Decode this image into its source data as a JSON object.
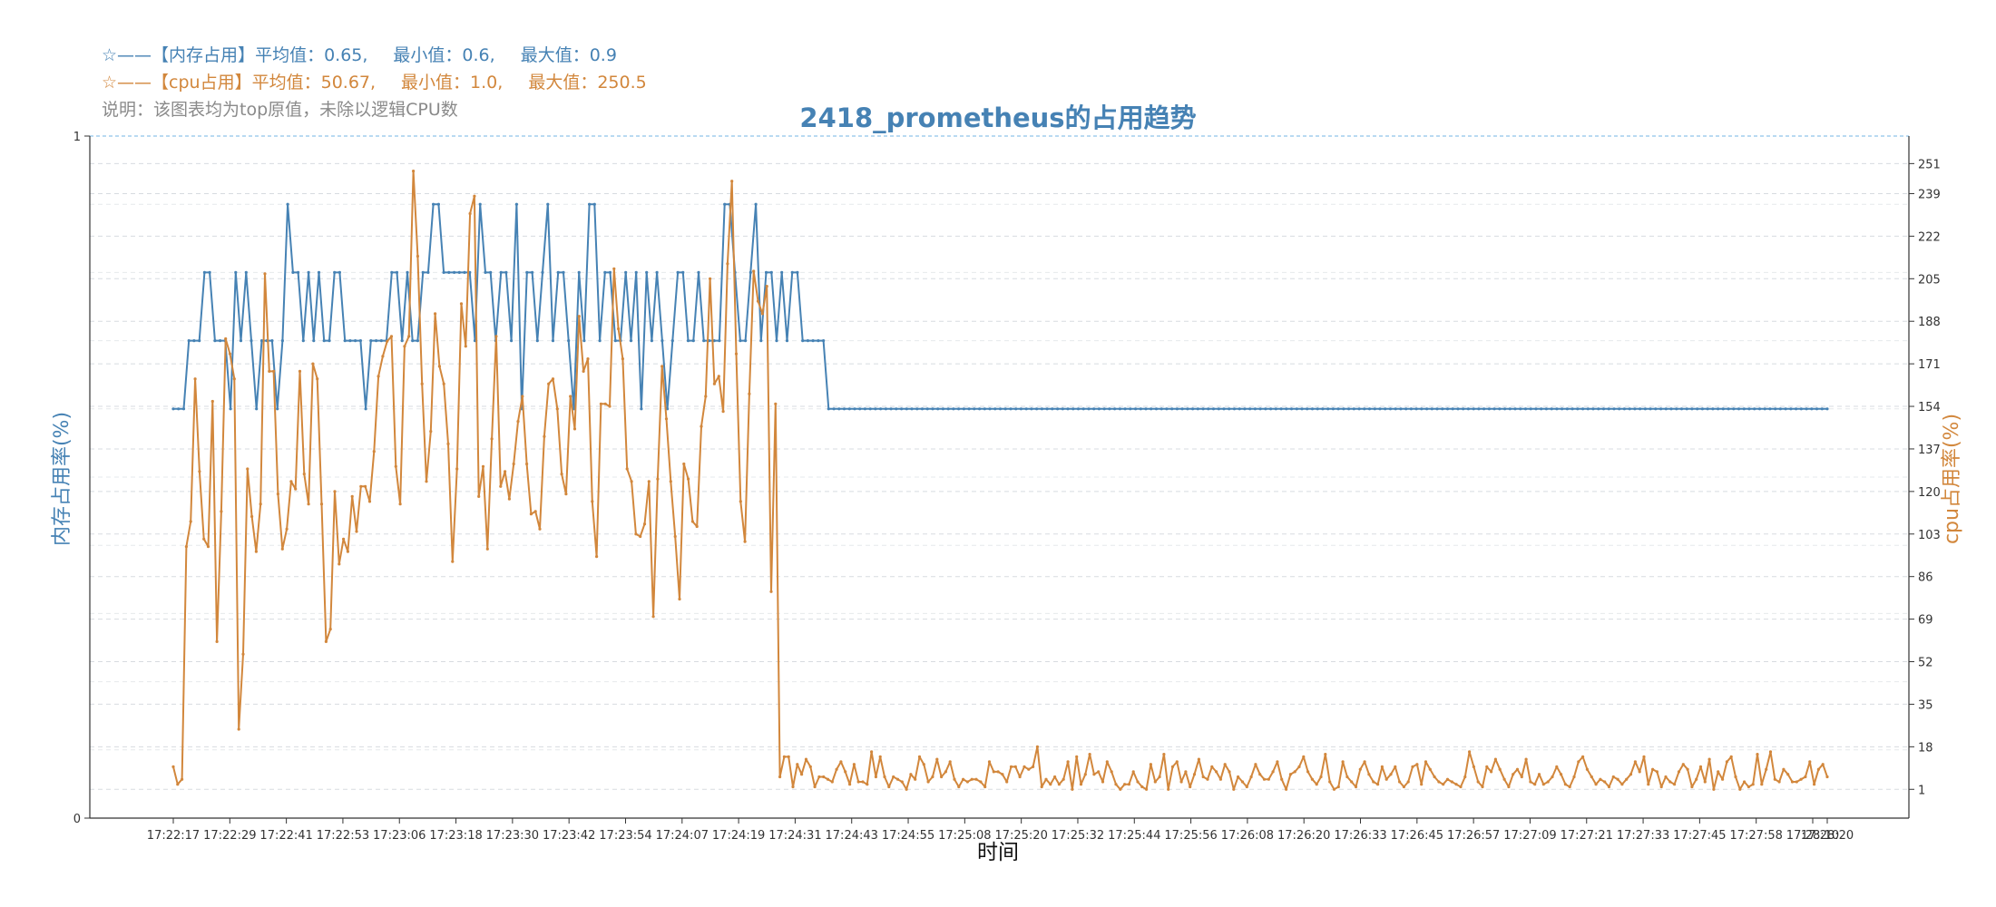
{
  "header": {
    "mem_line": {
      "marker": "☆——",
      "name": "【内存占用】",
      "avg_label": "平均值：0.65,",
      "min_label": "最小值：0.6,",
      "max_label": "最大值：0.9"
    },
    "cpu_line": {
      "marker": "☆——",
      "name": "【cpu占用】",
      "avg_label": "平均值：50.67,",
      "min_label": "最小值：1.0,",
      "max_label": "最大值：250.5"
    },
    "note": "说明：该图表均为top原值，未除以逻辑CPU数"
  },
  "chart_data": {
    "type": "line",
    "title": "2418_prometheus的占用趋势",
    "xlabel": "时间",
    "ylabel_left": "内存占用率(%)",
    "ylabel_right": "cpu占用率(%)",
    "left_ylim": [
      0,
      1
    ],
    "left_ticks": [
      "0",
      "1"
    ],
    "right_ylim": [
      -10.5,
      262
    ],
    "right_ticks": [
      "1",
      "18",
      "35",
      "52",
      "69",
      "86",
      "103",
      "120",
      "137",
      "154",
      "171",
      "188",
      "205",
      "222",
      "239",
      "251"
    ],
    "x_ticks": [
      "17:22:17",
      "17:22:29",
      "17:22:41",
      "17:22:53",
      "17:23:06",
      "17:23:18",
      "17:23:30",
      "17:23:42",
      "17:23:54",
      "17:24:07",
      "17:24:19",
      "17:24:31",
      "17:24:43",
      "17:24:55",
      "17:25:08",
      "17:25:20",
      "17:25:32",
      "17:25:44",
      "17:25:56",
      "17:26:08",
      "17:26:20",
      "17:26:33",
      "17:26:45",
      "17:26:57",
      "17:27:09",
      "17:27:21",
      "17:27:33",
      "17:27:45",
      "17:27:58",
      "17:28:10",
      "17:28:20"
    ],
    "grid": true,
    "colors": {
      "memory": "#4682b4",
      "cpu": "#d2873c",
      "title": "#4682b4"
    },
    "series": [
      {
        "name": "【内存占用】",
        "axis": "left",
        "values": [
          0.6,
          0.6,
          0.6,
          0.7,
          0.7,
          0.7,
          0.8,
          0.8,
          0.7,
          0.7,
          0.7,
          0.6,
          0.8,
          0.7,
          0.8,
          0.7,
          0.6,
          0.7,
          0.7,
          0.7,
          0.6,
          0.7,
          0.9,
          0.8,
          0.8,
          0.7,
          0.8,
          0.7,
          0.8,
          0.7,
          0.7,
          0.8,
          0.8,
          0.7,
          0.7,
          0.7,
          0.7,
          0.6,
          0.7,
          0.7,
          0.7,
          0.7,
          0.8,
          0.8,
          0.7,
          0.8,
          0.7,
          0.7,
          0.8,
          0.8,
          0.9,
          0.9,
          0.8,
          0.8,
          0.8,
          0.8,
          0.8,
          0.8,
          0.7,
          0.9,
          0.8,
          0.8,
          0.7,
          0.8,
          0.8,
          0.7,
          0.9,
          0.6,
          0.8,
          0.8,
          0.7,
          0.8,
          0.9,
          0.7,
          0.8,
          0.8,
          0.7,
          0.6,
          0.8,
          0.7,
          0.9,
          0.9,
          0.7,
          0.8,
          0.8,
          0.7,
          0.7,
          0.8,
          0.7,
          0.8,
          0.6,
          0.8,
          0.7,
          0.8,
          0.7,
          0.6,
          0.7,
          0.8,
          0.8,
          0.7,
          0.7,
          0.8,
          0.7,
          0.7,
          0.7,
          0.7,
          0.9,
          0.9,
          0.8,
          0.7,
          0.7,
          0.8,
          0.9,
          0.7,
          0.8,
          0.8,
          0.7,
          0.8,
          0.7,
          0.8,
          0.8,
          0.7,
          0.7,
          0.7,
          0.7,
          0.7,
          0.6,
          0.6,
          0.6,
          0.6,
          0.6,
          0.6,
          0.6,
          0.6,
          0.6,
          0.6,
          0.6,
          0.6,
          0.6,
          0.6,
          0.6,
          0.6,
          0.6,
          0.6,
          0.6,
          0.6,
          0.6,
          0.6,
          0.6,
          0.6,
          0.6,
          0.6,
          0.6,
          0.6,
          0.6,
          0.6,
          0.6,
          0.6,
          0.6,
          0.6,
          0.6,
          0.6,
          0.6,
          0.6,
          0.6,
          0.6,
          0.6,
          0.6,
          0.6,
          0.6,
          0.6,
          0.6,
          0.6,
          0.6,
          0.6,
          0.6,
          0.6,
          0.6,
          0.6,
          0.6,
          0.6,
          0.6,
          0.6,
          0.6,
          0.6,
          0.6,
          0.6,
          0.6,
          0.6,
          0.6,
          0.6,
          0.6,
          0.6,
          0.6,
          0.6,
          0.6,
          0.6,
          0.6,
          0.6,
          0.6,
          0.6,
          0.6,
          0.6,
          0.6,
          0.6,
          0.6,
          0.6,
          0.6,
          0.6,
          0.6,
          0.6,
          0.6,
          0.6,
          0.6,
          0.6,
          0.6,
          0.6,
          0.6,
          0.6,
          0.6,
          0.6,
          0.6,
          0.6,
          0.6,
          0.6,
          0.6,
          0.6,
          0.6,
          0.6,
          0.6,
          0.6,
          0.6,
          0.6,
          0.6,
          0.6,
          0.6,
          0.6,
          0.6,
          0.6,
          0.6,
          0.6,
          0.6,
          0.6,
          0.6,
          0.6,
          0.6,
          0.6,
          0.6,
          0.6,
          0.6,
          0.6,
          0.6,
          0.6,
          0.6,
          0.6,
          0.6,
          0.6,
          0.6,
          0.6,
          0.6,
          0.6,
          0.6,
          0.6,
          0.6,
          0.6,
          0.6,
          0.6,
          0.6,
          0.6,
          0.6,
          0.6,
          0.6,
          0.6,
          0.6,
          0.6,
          0.6,
          0.6,
          0.6,
          0.6,
          0.6,
          0.6,
          0.6,
          0.6,
          0.6,
          0.6,
          0.6,
          0.6,
          0.6,
          0.6,
          0.6,
          0.6,
          0.6,
          0.6,
          0.6,
          0.6,
          0.6,
          0.6,
          0.6,
          0.6,
          0.6,
          0.6,
          0.6,
          0.6,
          0.6,
          0.6,
          0.6,
          0.6,
          0.6,
          0.6,
          0.6,
          0.6,
          0.6,
          0.6,
          0.6,
          0.6,
          0.6,
          0.6,
          0.6,
          0.6
        ]
      },
      {
        "name": "【cpu占用】",
        "axis": "right",
        "values": [
          10,
          3,
          5,
          98,
          108,
          165,
          128,
          101,
          98,
          156,
          60,
          112,
          181,
          175,
          165,
          25,
          55,
          129,
          110,
          96,
          115,
          207,
          168,
          168,
          119,
          97,
          105,
          124,
          121,
          168,
          127,
          115,
          171,
          165,
          115,
          60,
          65,
          120,
          91,
          101,
          96,
          118,
          104,
          122,
          122,
          116,
          136,
          166,
          174,
          180,
          182,
          130,
          115,
          178,
          182,
          248,
          214,
          163,
          124,
          144,
          191,
          170,
          163,
          139,
          92,
          129,
          195,
          178,
          231,
          238,
          118,
          130,
          97,
          141,
          182,
          122,
          128,
          117,
          131,
          148,
          158,
          131,
          111,
          112,
          105,
          142,
          163,
          165,
          153,
          127,
          119,
          158,
          145,
          190,
          168,
          173,
          116,
          94,
          155,
          155,
          154,
          209,
          185,
          173,
          129,
          124,
          103,
          102,
          107,
          124,
          70,
          125,
          170,
          149,
          124,
          102,
          77,
          131,
          125,
          108,
          106,
          146,
          158,
          205,
          163,
          166,
          152,
          211,
          244,
          175,
          116,
          100,
          159,
          208,
          196,
          191,
          202,
          80,
          155,
          6,
          14,
          14,
          2,
          11,
          7,
          13,
          10,
          2,
          6,
          6,
          5,
          4,
          9,
          12,
          8,
          3,
          11,
          4,
          4,
          3,
          16,
          6,
          14,
          6,
          2,
          6,
          5,
          4,
          1,
          7,
          5,
          14,
          11,
          4,
          6,
          13,
          6,
          8,
          12,
          5,
          2,
          5,
          4,
          5,
          5,
          4,
          2,
          12,
          8,
          8,
          7,
          4,
          10,
          10,
          6,
          10,
          9,
          10,
          18,
          2,
          5,
          3,
          6,
          3,
          5,
          12,
          1,
          14,
          3,
          7,
          15,
          7,
          8,
          4,
          12,
          8,
          3,
          1,
          3,
          3,
          8,
          4,
          2,
          1,
          11,
          4,
          6,
          15,
          1,
          10,
          12,
          4,
          8,
          2,
          7,
          13,
          6,
          5,
          10,
          8,
          5,
          11,
          8,
          1,
          6,
          4,
          2,
          6,
          11,
          7,
          5,
          5,
          8,
          12,
          5,
          1,
          7,
          8,
          10,
          14,
          8,
          5,
          3,
          6,
          15,
          4,
          1,
          2,
          12,
          6,
          4,
          2,
          9,
          12,
          7,
          4,
          3,
          10,
          5,
          7,
          10,
          4,
          2,
          4,
          10,
          11,
          3,
          12,
          9,
          6,
          4,
          3,
          5,
          4,
          3,
          2,
          6,
          16,
          10,
          4,
          2,
          10,
          8,
          13,
          9,
          5,
          2,
          7,
          9,
          6,
          13,
          4,
          3,
          7,
          3,
          4,
          6,
          10,
          7,
          3,
          2,
          6,
          12,
          14,
          9,
          6,
          3,
          5,
          4,
          2,
          6,
          5,
          3,
          5,
          7,
          12,
          8,
          14,
          3,
          9,
          8,
          2,
          6,
          4,
          3,
          8,
          11,
          9,
          2,
          5,
          10,
          4,
          13,
          1,
          8,
          5,
          12,
          14,
          6,
          1,
          4,
          2,
          3,
          15,
          3,
          9,
          16,
          5,
          4,
          9,
          7,
          4,
          4,
          5,
          6,
          12,
          3,
          9,
          11,
          6
        ]
      }
    ]
  }
}
